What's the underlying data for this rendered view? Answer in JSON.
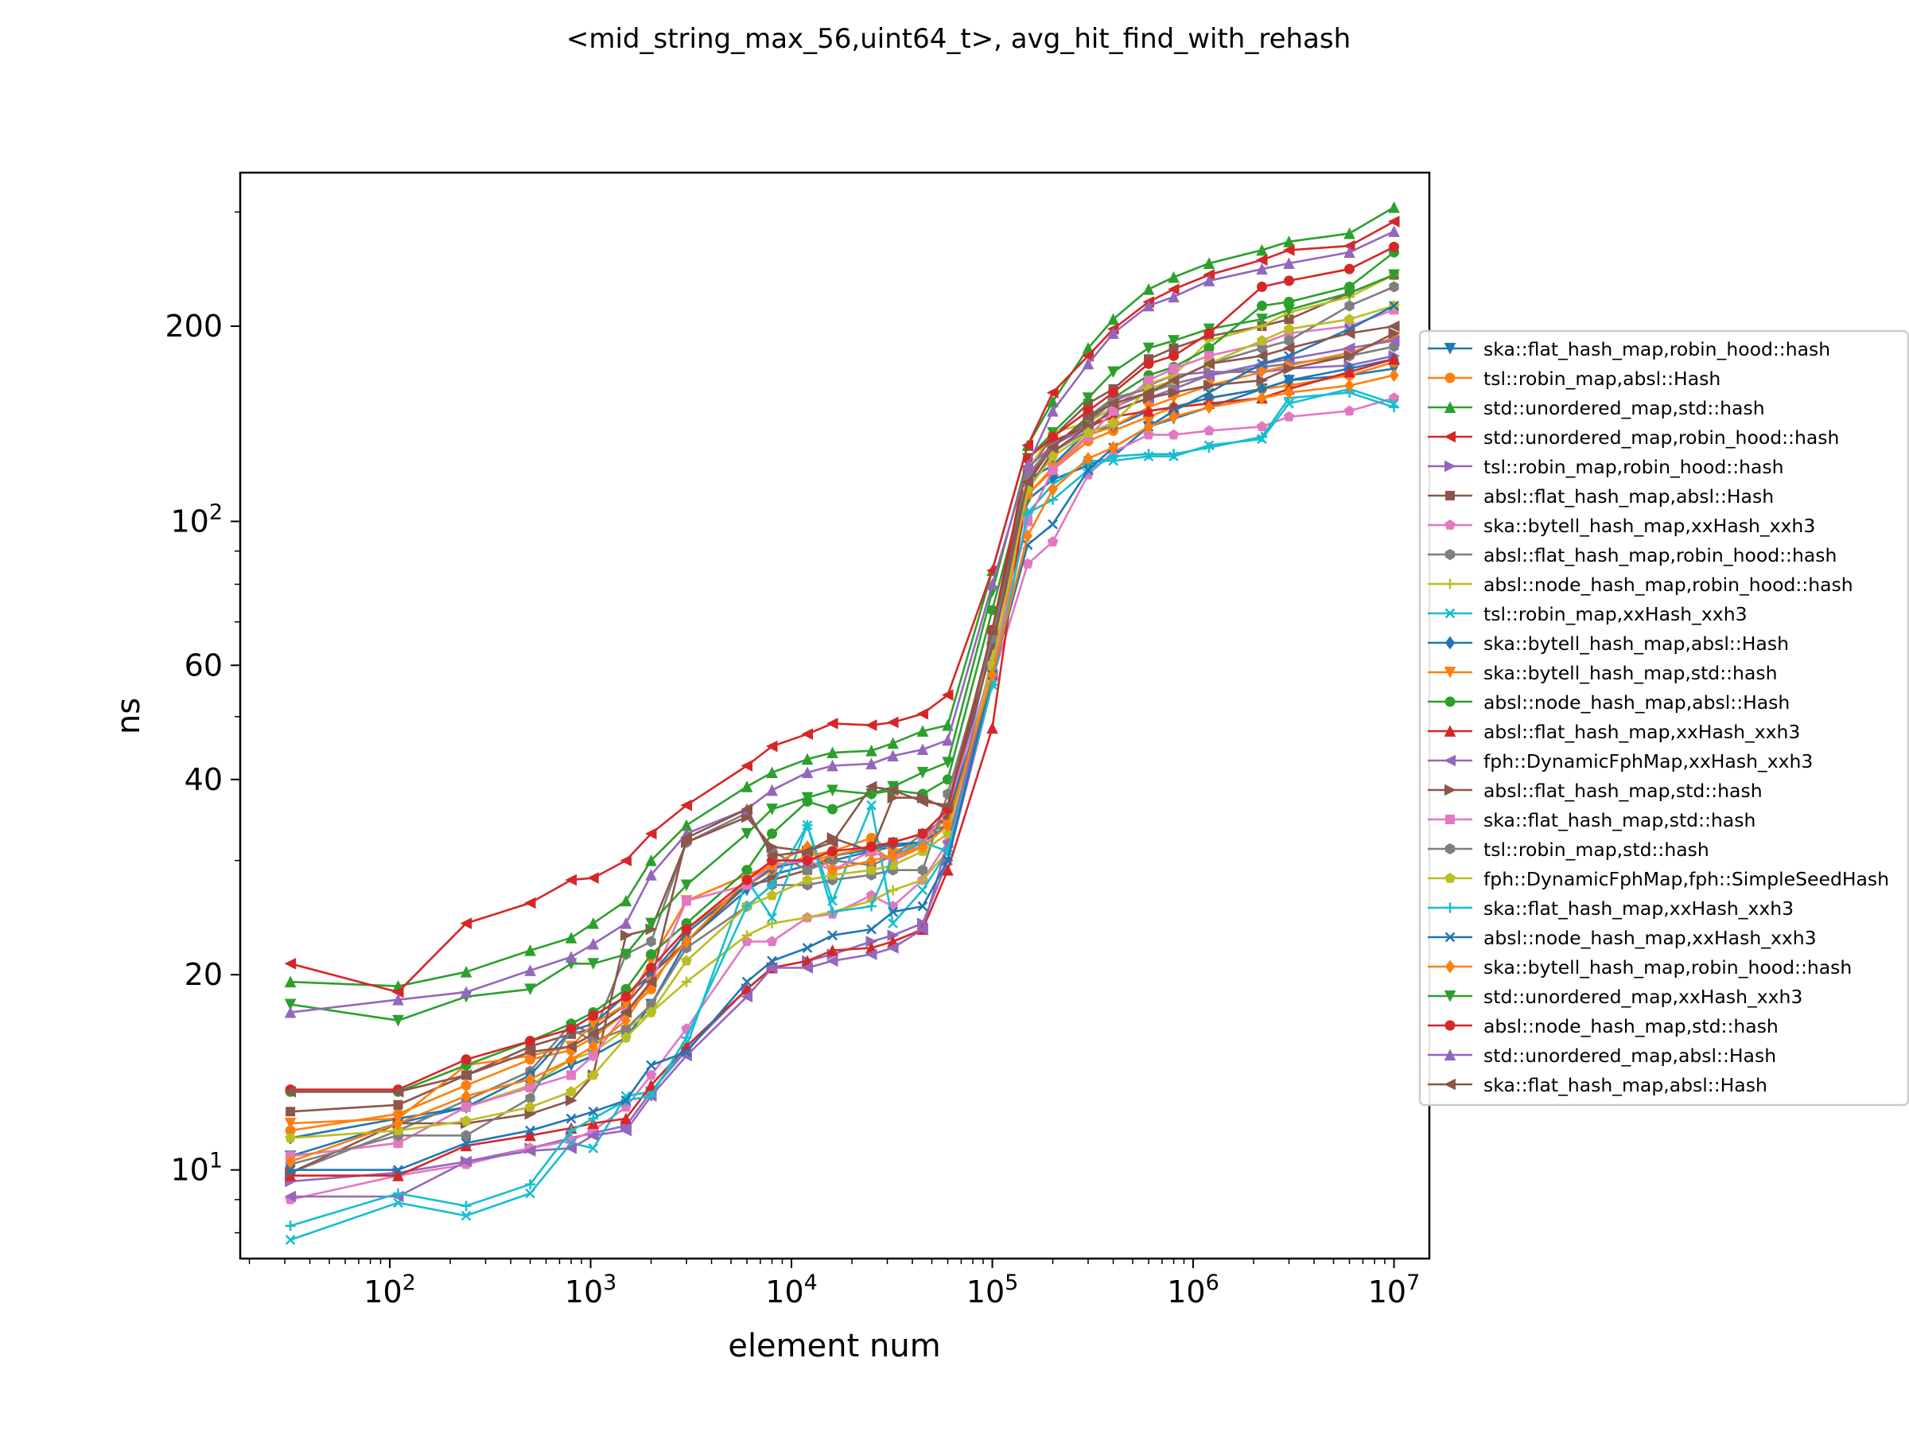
{
  "chart_data": {
    "type": "line",
    "title": "<mid_string_max_56,uint64_t>, avg_hit_find_with_rehash",
    "xlabel": "element num",
    "ylabel": "ns",
    "x_scale": "log",
    "y_scale": "log",
    "xlim": [
      18,
      15000000
    ],
    "ylim": [
      7.3,
      345
    ],
    "grid": false,
    "legend_position": "right, outside plot",
    "x_ticks": [
      {
        "value": 100,
        "base": "10",
        "exp": "2"
      },
      {
        "value": 1000,
        "base": "10",
        "exp": "3"
      },
      {
        "value": 10000,
        "base": "10",
        "exp": "4"
      },
      {
        "value": 100000,
        "base": "10",
        "exp": "5"
      },
      {
        "value": 1000000,
        "base": "10",
        "exp": "6"
      },
      {
        "value": 10000000,
        "base": "10",
        "exp": "7"
      }
    ],
    "y_ticks": [
      {
        "value": 10,
        "base": "10",
        "exp": "1"
      },
      {
        "value": 20,
        "base": "20",
        "exp": ""
      },
      {
        "value": 40,
        "base": "40",
        "exp": ""
      },
      {
        "value": 60,
        "base": "60",
        "exp": ""
      },
      {
        "value": 100,
        "base": "10",
        "exp": "2"
      },
      {
        "value": 200,
        "base": "200",
        "exp": ""
      }
    ],
    "x": [
      32,
      110,
      240,
      500,
      800,
      1030,
      1500,
      2000,
      3000,
      6000,
      8000,
      12000,
      16000,
      25000,
      32000,
      45000,
      60000,
      100000,
      150000,
      200000,
      300000,
      400000,
      600000,
      800000,
      1200000,
      2200000,
      3000000,
      6000000,
      10000000
    ],
    "series": [
      {
        "name": "ska::flat_hash_map,robin_hood::hash",
        "color": "#1f77b4",
        "marker": "tri-down",
        "values": [
          10.5,
          11.8,
          12.5,
          13.5,
          14.5,
          15,
          16,
          18,
          22.5,
          27,
          28.5,
          29.5,
          30,
          31,
          31.5,
          32,
          34,
          60,
          108,
          116,
          122,
          126,
          140,
          144,
          150,
          160,
          165,
          168,
          172
        ]
      },
      {
        "name": "tsl::robin_map,absl::Hash",
        "color": "#ff7f0e",
        "marker": "circle",
        "values": [
          11.5,
          12.2,
          13.5,
          14.8,
          15.3,
          16,
          17.5,
          19,
          23.5,
          27.5,
          29,
          30.5,
          31,
          32.5,
          31,
          32,
          35,
          65,
          110,
          120,
          133,
          138,
          145,
          150,
          155,
          160,
          162,
          168,
          176
        ]
      },
      {
        "name": "std::unordered_map,std::hash",
        "color": "#2ca02c",
        "marker": "tri-up",
        "values": [
          19.5,
          19.2,
          20.2,
          21.8,
          22.8,
          24,
          26,
          30,
          34,
          39,
          41,
          43,
          44,
          44.3,
          45.5,
          47.5,
          48.5,
          84,
          131,
          153,
          185,
          205,
          228,
          238,
          250,
          262,
          270,
          278,
          305
        ]
      },
      {
        "name": "std::unordered_map,robin_hood::hash",
        "color": "#d62728",
        "marker": "tri-left",
        "values": [
          20.8,
          18.8,
          24,
          25.8,
          28,
          28.2,
          30,
          33,
          36.5,
          42,
          45,
          47,
          48.8,
          48.5,
          49,
          50.5,
          54,
          84,
          131,
          158,
          180,
          198,
          218,
          228,
          240,
          253,
          262,
          266,
          290
        ]
      },
      {
        "name": "tsl::robin_map,robin_hood::hash",
        "color": "#9467bd",
        "marker": "tri-right",
        "values": [
          9.6,
          9.9,
          10.3,
          10.8,
          11.2,
          11.4,
          11.7,
          13.2,
          15.3,
          19,
          20.5,
          21,
          21.5,
          22.5,
          23,
          24,
          30,
          56,
          114,
          131,
          142,
          153,
          162,
          168,
          170,
          170,
          172,
          174,
          180
        ]
      },
      {
        "name": "absl::flat_hash_map,absl::Hash",
        "color": "#8c564b",
        "marker": "square",
        "values": [
          12.3,
          12.6,
          14,
          15.5,
          16.2,
          16.5,
          18,
          20,
          22.5,
          27.5,
          28,
          29,
          30.5,
          31.5,
          32,
          33,
          35,
          68,
          120,
          135,
          152,
          160,
          178,
          185,
          193,
          200,
          205,
          225,
          240
        ]
      },
      {
        "name": "ska::bytell_hash_map,xxHash_xxh3",
        "color": "#e377c2",
        "marker": "pentagon",
        "values": [
          9.0,
          9.8,
          10.2,
          10.8,
          11.1,
          11.5,
          12.5,
          14,
          16.5,
          22.5,
          22.5,
          24.5,
          24.8,
          26.5,
          25.5,
          28,
          32,
          57,
          86,
          93,
          118,
          128,
          136,
          136,
          138,
          140,
          145,
          148,
          155
        ]
      },
      {
        "name": "absl::flat_hash_map,robin_hood::hash",
        "color": "#7f7f7f",
        "marker": "hexagon",
        "values": [
          9.9,
          11.5,
          12.8,
          14.2,
          16.8,
          16.2,
          21.5,
          22.5,
          32,
          35.5,
          31,
          29,
          30,
          29.5,
          30.5,
          33,
          34,
          58,
          112,
          128,
          138,
          150,
          158,
          163,
          168,
          173,
          175,
          180,
          186
        ]
      },
      {
        "name": "absl::node_hash_map,robin_hood::hash",
        "color": "#bcbd22",
        "marker": "plus",
        "values": [
          10.5,
          11,
          12.5,
          13.5,
          14.8,
          15.2,
          16.5,
          17.5,
          19.5,
          23,
          24,
          24.5,
          25,
          26,
          27,
          28,
          31,
          62,
          120,
          137,
          142,
          150,
          163,
          168,
          190,
          200,
          210,
          222,
          240
        ]
      },
      {
        "name": "tsl::robin_map,xxHash_xxh3",
        "color": "#17becf",
        "marker": "x",
        "values": [
          7.8,
          8.9,
          8.5,
          9.2,
          11,
          10.8,
          13,
          13.2,
          15.5,
          28,
          24.5,
          34,
          26,
          36.5,
          24,
          27,
          31,
          56,
          103,
          114,
          124,
          124,
          126,
          126,
          131,
          134,
          152,
          160,
          152
        ]
      },
      {
        "name": "ska::bytell_hash_map,absl::Hash",
        "color": "#1f77b4",
        "marker": "diamond",
        "values": [
          11.2,
          12,
          12.5,
          14,
          16.4,
          16.8,
          18.6,
          20,
          23.2,
          27.5,
          29.2,
          30,
          30.5,
          31.2,
          31.8,
          32,
          34,
          65,
          116,
          122,
          138,
          140,
          148,
          150,
          155,
          160,
          165,
          172,
          178
        ]
      },
      {
        "name": "ska::bytell_hash_map,std::hash",
        "color": "#ff7f0e",
        "marker": "tri-down",
        "values": [
          11.8,
          12,
          14.5,
          15,
          15.5,
          16.8,
          18,
          21,
          26,
          28.5,
          29.5,
          30,
          30.5,
          31.5,
          30,
          31.5,
          34,
          58,
          110,
          121,
          136,
          140,
          150,
          155,
          162,
          170,
          174,
          182,
          192
        ]
      },
      {
        "name": "absl::node_hash_map,absl::Hash",
        "color": "#2ca02c",
        "marker": "circle",
        "values": [
          13.2,
          13.2,
          14.5,
          15.8,
          16.8,
          17.5,
          19,
          21.5,
          24,
          29,
          33,
          37,
          36,
          38,
          38.5,
          38,
          40,
          73,
          118,
          131,
          143,
          155,
          168,
          173,
          185,
          215,
          218,
          230,
          260
        ]
      },
      {
        "name": "absl::flat_hash_map,xxHash_xxh3",
        "color": "#d62728",
        "marker": "tri-up",
        "values": [
          9.8,
          9.8,
          10.9,
          11.3,
          11.6,
          11.8,
          12,
          13.5,
          15.5,
          19,
          20.5,
          21,
          21.8,
          22,
          22.5,
          23.5,
          29,
          48,
          115,
          133,
          140,
          145,
          148,
          150,
          152,
          155,
          160,
          170,
          178
        ]
      },
      {
        "name": "fph::DynamicFphMap,xxHash_xxh3",
        "color": "#9467bd",
        "marker": "tri-left",
        "values": [
          9.1,
          9.1,
          10.3,
          10.7,
          10.8,
          11.3,
          11.5,
          13,
          15,
          18.5,
          20.5,
          20.5,
          21,
          21.5,
          22,
          23.5,
          32,
          58,
          121,
          131,
          140,
          148,
          155,
          160,
          168,
          175,
          178,
          185,
          190
        ]
      },
      {
        "name": "absl::flat_hash_map,std::hash",
        "color": "#8c564b",
        "marker": "tri-right",
        "values": [
          9.9,
          11.8,
          11.8,
          12.2,
          12.8,
          14,
          23,
          23.5,
          32,
          35,
          31.5,
          31,
          32.5,
          31,
          37.5,
          37.5,
          36,
          64,
          112,
          128,
          140,
          148,
          155,
          158,
          162,
          165,
          172,
          180,
          195
        ]
      },
      {
        "name": "ska::flat_hash_map,std::hash",
        "color": "#e377c2",
        "marker": "square",
        "values": [
          10.5,
          11,
          12.5,
          13.4,
          14,
          15,
          17.5,
          19.5,
          26,
          27.5,
          29.5,
          30,
          29,
          31,
          30,
          32,
          36,
          60,
          100,
          120,
          135,
          148,
          165,
          172,
          180,
          188,
          195,
          200,
          212
        ]
      },
      {
        "name": "tsl::robin_map,std::hash",
        "color": "#7f7f7f",
        "marker": "hexagon",
        "values": [
          10.2,
          11.3,
          11.3,
          12.9,
          16.5,
          15.8,
          16.5,
          18,
          22,
          25.5,
          27.5,
          27.5,
          28,
          28.5,
          29,
          29,
          38,
          66,
          118,
          130,
          145,
          155,
          160,
          165,
          175,
          185,
          190,
          215,
          230
        ]
      },
      {
        "name": "fph::DynamicFphMap,fph::SimpleSeedHash",
        "color": "#bcbd22",
        "marker": "pentagon",
        "values": [
          11.2,
          11.5,
          11.9,
          12.5,
          13.2,
          14,
          16,
          17.5,
          21,
          25.5,
          26.5,
          28,
          28.5,
          29,
          29.5,
          31,
          33,
          60,
          112,
          126,
          137,
          142,
          160,
          165,
          175,
          190,
          198,
          205,
          215
        ]
      },
      {
        "name": "ska::flat_hash_map,xxHash_xxh3",
        "color": "#17becf",
        "marker": "plus",
        "values": [
          8.2,
          9.2,
          8.8,
          9.5,
          11.5,
          12,
          12.8,
          13,
          16,
          25.5,
          27.5,
          34,
          25,
          25.5,
          30.5,
          32,
          31,
          56,
          103,
          108,
          120,
          126,
          127,
          127,
          130,
          135,
          155,
          158,
          150
        ]
      },
      {
        "name": "absl::node_hash_map,xxHash_xxh3",
        "color": "#1f77b4",
        "marker": "x",
        "values": [
          10,
          10,
          11,
          11.5,
          12,
          12.3,
          12.8,
          14.5,
          15.2,
          19.5,
          21,
          22,
          23,
          23.5,
          25,
          25.5,
          30,
          58,
          92,
          99,
          120,
          130,
          140,
          148,
          158,
          175,
          180,
          198,
          215
        ]
      },
      {
        "name": "ska::bytell_hash_map,robin_hood::hash",
        "color": "#ff7f0e",
        "marker": "diamond",
        "values": [
          10.3,
          11.8,
          13,
          13.8,
          14.8,
          15.5,
          17,
          19.5,
          22.5,
          28,
          29.5,
          31.5,
          29,
          30,
          30.5,
          31.5,
          34,
          58,
          95,
          112,
          125,
          130,
          140,
          145,
          150,
          155,
          158,
          162,
          168
        ]
      },
      {
        "name": "std::unordered_map,xxHash_xxh3",
        "color": "#2ca02c",
        "marker": "tri-down",
        "values": [
          18,
          17,
          18.5,
          19,
          20.8,
          20.8,
          21.5,
          24,
          27.5,
          33,
          36,
          37.5,
          38.5,
          38,
          39,
          41,
          42.5,
          78,
          125,
          137,
          155,
          170,
          185,
          190,
          198,
          205,
          212,
          225,
          240
        ]
      },
      {
        "name": "absl::node_hash_map,std::hash",
        "color": "#d62728",
        "marker": "circle",
        "values": [
          13.3,
          13.3,
          14.8,
          15.8,
          16.5,
          17.3,
          18.5,
          20.5,
          23.5,
          28,
          30,
          30,
          31,
          31.5,
          32,
          33,
          36,
          68,
          125,
          135,
          148,
          158,
          175,
          180,
          195,
          230,
          235,
          245,
          265
        ]
      },
      {
        "name": "std::unordered_map,absl::Hash",
        "color": "#9467bd",
        "marker": "tri-up",
        "values": [
          17.5,
          18.3,
          18.8,
          20.3,
          21.3,
          22.3,
          24,
          28.5,
          33,
          36,
          38.5,
          41,
          42,
          42.3,
          43.5,
          44.5,
          46,
          80,
          122,
          148,
          175,
          195,
          215,
          222,
          235,
          245,
          250,
          260,
          280
        ]
      },
      {
        "name": "ska::flat_hash_map,absl::Hash",
        "color": "#8c564b",
        "marker": "tri-left",
        "values": [
          13.2,
          13.2,
          14,
          15.2,
          15.5,
          16.2,
          17.5,
          19.5,
          32.5,
          36,
          30.5,
          31,
          32,
          39,
          38.5,
          37,
          36.5,
          68,
          115,
          130,
          145,
          152,
          158,
          165,
          175,
          180,
          185,
          195,
          200
        ]
      }
    ]
  }
}
